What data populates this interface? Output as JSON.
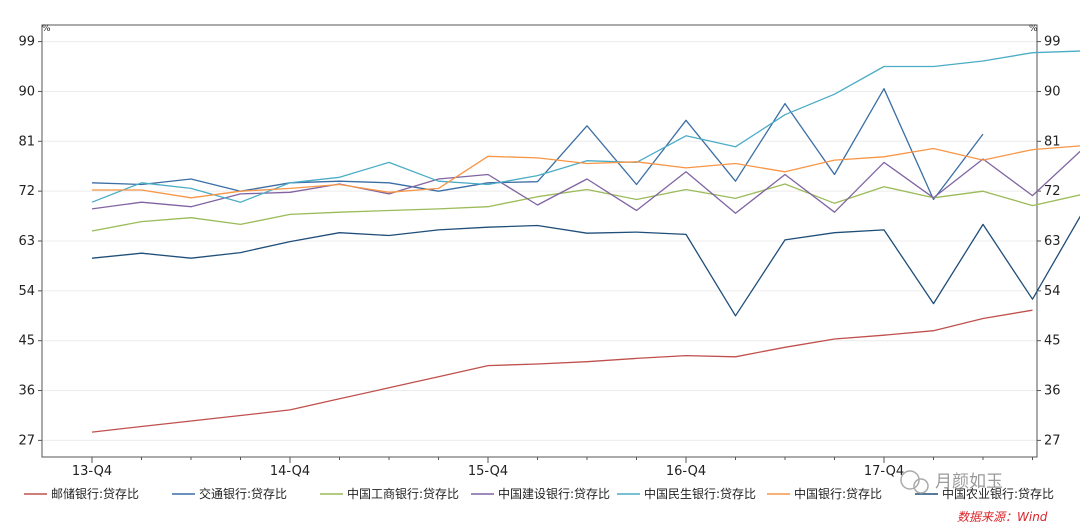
{
  "chart_data": {
    "type": "line",
    "unit_left": "%",
    "unit_right": "%",
    "ylim": [
      24,
      102
    ],
    "yticks": [
      27,
      36,
      45,
      54,
      63,
      72,
      81,
      90,
      99
    ],
    "x": [
      "13-Q4",
      "14-Q1",
      "14-Q2",
      "14-Q3",
      "14-Q4",
      "15-Q1",
      "15-Q2",
      "15-Q3",
      "15-Q4",
      "16-Q1",
      "16-Q2",
      "16-Q3",
      "16-Q4",
      "17-Q1",
      "17-Q2",
      "17-Q3",
      "17-Q4",
      "18-Q1",
      "18-Q2",
      "18-Q3",
      "18-Q4"
    ],
    "xtick_labels": [
      "13-Q4",
      "14-Q4",
      "15-Q4",
      "16-Q4",
      "17-Q4"
    ],
    "grid": true,
    "legend_position": "bottom",
    "series": [
      {
        "name": "邮储银行:贷存比",
        "color": "#c0504d",
        "values": [
          28.5,
          29.5,
          30.5,
          31.5,
          32.5,
          34.5,
          36.5,
          38.5,
          40.5,
          40.8,
          41.2,
          41.8,
          42.3,
          42.1,
          43.8,
          45.3,
          46.0,
          46.8,
          49.0,
          50.5,
          null
        ]
      },
      {
        "name": "交通银行:贷存比",
        "color": "#3a6ea5",
        "values": [
          73.5,
          73.2,
          74.2,
          72.0,
          73.5,
          73.8,
          73.5,
          72.0,
          73.5,
          73.7,
          83.8,
          73.2,
          84.8,
          73.8,
          87.8,
          75.0,
          90.5,
          70.5,
          82.3,
          null,
          null
        ]
      },
      {
        "name": "中国工商银行:贷存比",
        "color": "#9bbb59",
        "values": [
          64.8,
          66.5,
          67.2,
          66.0,
          67.8,
          68.2,
          68.5,
          68.8,
          69.2,
          71.0,
          72.3,
          70.5,
          72.3,
          70.7,
          73.3,
          69.8,
          72.8,
          70.8,
          72.0,
          69.4,
          71.4
        ]
      },
      {
        "name": "中国建设银行:贷存比",
        "color": "#8064a2",
        "values": [
          68.8,
          70.0,
          69.2,
          71.5,
          71.8,
          73.3,
          71.5,
          74.2,
          75.0,
          69.5,
          74.2,
          68.5,
          75.5,
          68.0,
          75.0,
          68.2,
          77.2,
          70.8,
          77.8,
          71.2,
          79.5
        ]
      },
      {
        "name": "中国民生银行:贷存比",
        "color": "#4bacc6",
        "values": [
          70.0,
          73.5,
          72.5,
          70.0,
          73.5,
          74.5,
          77.2,
          73.8,
          73.2,
          74.8,
          77.5,
          77.2,
          82.0,
          80.0,
          85.8,
          89.5,
          94.5,
          94.5,
          95.5,
          97.0,
          97.3
        ]
      },
      {
        "name": "中国银行:贷存比",
        "color": "#f79646",
        "values": [
          72.2,
          72.2,
          70.8,
          72.0,
          72.5,
          73.2,
          71.8,
          72.5,
          78.3,
          78.0,
          77.0,
          77.3,
          76.2,
          77.0,
          75.5,
          77.6,
          78.2,
          79.7,
          77.6,
          79.5,
          80.2
        ]
      },
      {
        "name": "中国农业银行:贷存比",
        "color": "#1f4e79",
        "values": [
          59.9,
          60.8,
          59.9,
          60.9,
          62.9,
          64.5,
          64.0,
          65.0,
          65.5,
          65.8,
          64.4,
          64.6,
          64.2,
          49.5,
          63.2,
          64.5,
          65.0,
          51.7,
          66.0,
          52.5,
          68.0
        ]
      }
    ]
  },
  "watermark": "月颜如玉",
  "source": "数据来源：Wind"
}
